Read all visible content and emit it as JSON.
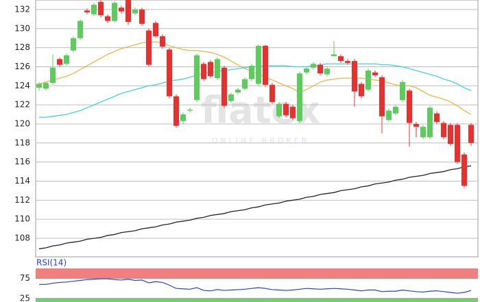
{
  "chart_data": [
    {
      "type": "candlestick",
      "watermark": "flatex",
      "watermark_sub": "ONLINE BROKER",
      "ylim": [
        106.06,
        133
      ],
      "yticks": [
        108,
        110,
        112,
        114,
        116,
        118,
        120,
        122,
        124,
        126,
        128,
        130,
        132
      ],
      "grid": true,
      "up_color": "#5ccc5c",
      "down_color": "#e8302f",
      "open": [
        123.8,
        123.7,
        124.3,
        126.8,
        126.3,
        127.7,
        129.0,
        131.9,
        131.5,
        132.8,
        131.3,
        130.8,
        132.2,
        133.0,
        131.6,
        132.0,
        129.8,
        130.6,
        129.2,
        127.8,
        122.9,
        120.3,
        121.4,
        122.5,
        126.3,
        126.5,
        124.8,
        125.9,
        122.4,
        123.3,
        123.7,
        124.7,
        124.2,
        128.2,
        124.1,
        120.8,
        122.1,
        121.8,
        120.3,
        125.4,
        125.9,
        126.2,
        125.2,
        127.1,
        127.1,
        126.6,
        126.6,
        124.2,
        123.6,
        125.4,
        124.9,
        120.4,
        121.1,
        122.5,
        123.5,
        120.0,
        118.6,
        118.6,
        121.1,
        120.1,
        119.9,
        119.9,
        116.8,
        119.9
      ],
      "high": [
        124.4,
        124.4,
        127.3,
        127.0,
        127.4,
        129.2,
        131.0,
        132.1,
        132.7,
        133.0,
        131.5,
        132.9,
        132.4,
        133.0,
        132.2,
        132.2,
        130.0,
        130.8,
        129.4,
        128.0,
        123.1,
        121.2,
        121.7,
        127.4,
        126.5,
        126.7,
        127.0,
        126.1,
        123.3,
        123.8,
        124.9,
        126.3,
        128.3,
        128.3,
        124.3,
        122.3,
        122.3,
        122.0,
        125.5,
        126.0,
        126.5,
        126.4,
        126.0,
        128.7,
        127.3,
        126.8,
        126.8,
        124.4,
        125.8,
        125.6,
        125.1,
        121.6,
        122.0,
        124.6,
        123.7,
        120.2,
        119.9,
        121.9,
        121.3,
        120.3,
        120.1,
        120.1,
        117.0,
        120.1
      ],
      "low": [
        123.5,
        123.5,
        124.1,
        126.0,
        126.1,
        127.5,
        128.8,
        131.5,
        131.3,
        131.2,
        130.6,
        130.6,
        131.6,
        130.4,
        131.4,
        130.3,
        126.0,
        129.0,
        127.9,
        122.7,
        119.6,
        120.0,
        121.2,
        122.3,
        124.5,
        124.8,
        124.6,
        121.7,
        122.2,
        123.1,
        123.5,
        124.5,
        124.0,
        123.9,
        122.1,
        120.6,
        120.7,
        120.4,
        120.1,
        125.2,
        125.7,
        125.1,
        125.0,
        127.1,
        126.4,
        126.2,
        121.8,
        122.7,
        123.4,
        124.9,
        119.0,
        120.2,
        120.9,
        122.3,
        117.6,
        118.6,
        118.4,
        118.4,
        120.0,
        118.4,
        117.7,
        115.8,
        113.3,
        117.7
      ],
      "close": [
        124.2,
        124.3,
        125.9,
        126.2,
        127.2,
        129.0,
        130.8,
        131.7,
        132.5,
        131.4,
        130.8,
        132.7,
        131.8,
        130.7,
        132.0,
        130.5,
        126.2,
        129.2,
        128.1,
        122.9,
        119.8,
        121.0,
        121.5,
        127.2,
        124.7,
        125.0,
        126.8,
        121.9,
        123.1,
        123.6,
        124.7,
        126.1,
        128.2,
        124.1,
        122.3,
        122.1,
        120.9,
        120.6,
        125.3,
        125.8,
        126.3,
        125.3,
        125.8,
        127.3,
        126.6,
        126.4,
        123.4,
        122.9,
        125.6,
        125.1,
        120.8,
        121.4,
        121.8,
        124.4,
        120.1,
        119.7,
        119.7,
        121.7,
        120.2,
        118.6,
        117.9,
        116.0,
        113.5,
        118.0
      ],
      "overlays": [
        {
          "color": "#f0b440",
          "values": [
            124.2,
            124.4,
            124.6,
            124.8,
            125.0,
            125.3,
            125.7,
            126.1,
            126.5,
            126.9,
            127.3,
            127.6,
            127.9,
            128.1,
            128.3,
            128.5,
            128.6,
            128.6,
            128.5,
            128.2,
            128.0,
            127.8,
            127.7,
            127.7,
            127.6,
            127.5,
            127.3,
            127.0,
            126.6,
            126.2,
            125.8,
            125.5,
            125.2,
            124.9,
            124.6,
            124.3,
            124.0,
            123.7,
            123.3,
            123.6,
            124.0,
            124.4,
            124.6,
            124.7,
            124.8,
            124.8,
            124.8,
            124.8,
            124.7,
            124.6,
            124.5,
            124.3,
            124.1,
            124.0,
            124.0,
            123.8,
            123.4,
            123.0,
            122.8,
            122.6,
            122.3,
            121.9,
            121.4,
            121.0
          ]
        },
        {
          "color": "#40d0f0",
          "values": [
            120.7,
            120.7,
            120.8,
            120.9,
            121.0,
            121.2,
            121.4,
            121.7,
            122.0,
            122.3,
            122.6,
            122.9,
            123.2,
            123.4,
            123.6,
            123.8,
            124.0,
            124.1,
            124.3,
            124.5,
            124.6,
            124.7,
            124.9,
            125.1,
            125.3,
            125.4,
            125.5,
            125.6,
            125.7,
            125.8,
            125.9,
            126.0,
            126.0,
            126.1,
            126.1,
            126.1,
            126.1,
            126.0,
            126.0,
            126.0,
            126.1,
            126.2,
            126.3,
            126.3,
            126.3,
            126.3,
            126.3,
            126.3,
            126.3,
            126.3,
            126.2,
            126.2,
            126.1,
            126.0,
            125.8,
            125.6,
            125.4,
            125.2,
            125.0,
            124.7,
            124.5,
            124.2,
            123.8,
            123.5
          ]
        },
        {
          "color": "#222222",
          "values": [
            106.9,
            107.0,
            107.2,
            107.3,
            107.5,
            107.6,
            107.7,
            107.9,
            108.0,
            108.1,
            108.3,
            108.4,
            108.6,
            108.7,
            108.8,
            109.0,
            109.1,
            109.2,
            109.4,
            109.5,
            109.7,
            109.8,
            109.9,
            110.1,
            110.2,
            110.4,
            110.5,
            110.6,
            110.8,
            110.9,
            111.0,
            111.2,
            111.3,
            111.5,
            111.6,
            111.7,
            111.9,
            112.0,
            112.1,
            112.3,
            112.4,
            112.6,
            112.7,
            112.8,
            113.0,
            113.1,
            113.2,
            113.4,
            113.5,
            113.7,
            113.8,
            113.9,
            114.1,
            114.2,
            114.4,
            114.5,
            114.6,
            114.8,
            114.9,
            115.0,
            115.2,
            115.3,
            115.5,
            115.6
          ]
        }
      ]
    },
    {
      "type": "line",
      "title": "RSI(14)",
      "ylim": [
        16,
        100
      ],
      "yticks": [
        25,
        75
      ],
      "color": "#2040e0",
      "upper_band_color": "#f08080",
      "lower_band_color": "#70d070",
      "values": [
        60,
        60,
        63,
        65,
        66,
        68,
        70,
        72,
        73,
        74,
        74,
        72,
        71,
        73,
        70,
        71,
        64,
        67,
        65,
        58,
        50,
        49,
        48,
        52,
        45,
        44,
        47,
        45,
        46,
        47,
        48,
        50,
        52,
        50,
        47,
        46,
        45,
        46,
        48,
        50,
        49,
        48,
        49,
        50,
        49,
        48,
        46,
        44,
        46,
        46,
        42,
        43,
        43,
        46,
        44,
        42,
        41,
        43,
        44,
        42,
        40,
        38,
        40,
        45
      ]
    }
  ]
}
